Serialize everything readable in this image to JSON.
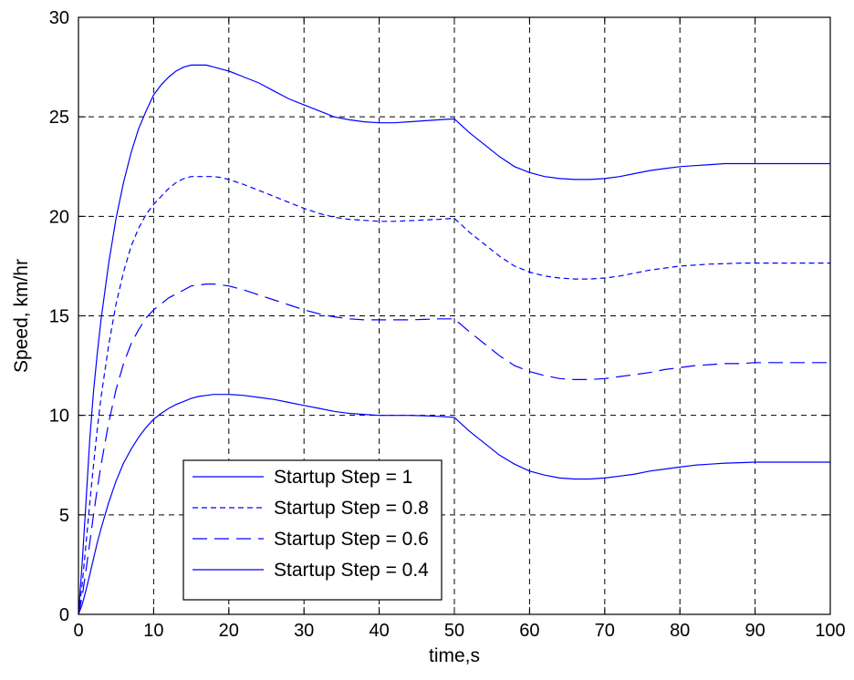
{
  "chart_data": {
    "type": "line",
    "title": "",
    "xlabel": "time,s",
    "ylabel": "Speed, km/hr",
    "xlim": [
      0,
      100
    ],
    "ylim": [
      0,
      30
    ],
    "xticks": [
      0,
      10,
      20,
      30,
      40,
      50,
      60,
      70,
      80,
      90,
      100
    ],
    "yticks": [
      0,
      5,
      10,
      15,
      20,
      25,
      30
    ],
    "grid": true,
    "legend_position": "bottom-left",
    "line_color": "#0000ff",
    "x": [
      0,
      0.5,
      1,
      1.5,
      2,
      2.5,
      3,
      4,
      5,
      6,
      7,
      8,
      9,
      10,
      11,
      12,
      13,
      14,
      15,
      16,
      17,
      18,
      19,
      20,
      22,
      24,
      26,
      28,
      30,
      32,
      34,
      36,
      38,
      40,
      42,
      44,
      46,
      48,
      50,
      52,
      54,
      56,
      58,
      60,
      62,
      64,
      66,
      68,
      70,
      72,
      74,
      76,
      78,
      80,
      82,
      84,
      86,
      88,
      90,
      92,
      94,
      96,
      98,
      100
    ],
    "series": [
      {
        "name": "Startup Step = 1",
        "dash": "solid",
        "values": [
          0,
          2.6,
          5.6,
          8.8,
          11.2,
          13.1,
          14.8,
          17.6,
          19.9,
          21.7,
          23.2,
          24.4,
          25.3,
          26.1,
          26.6,
          27.0,
          27.3,
          27.5,
          27.6,
          27.6,
          27.6,
          27.5,
          27.4,
          27.3,
          27.0,
          26.7,
          26.3,
          25.9,
          25.6,
          25.3,
          25.0,
          24.85,
          24.75,
          24.7,
          24.7,
          24.75,
          24.8,
          24.85,
          24.9,
          24.2,
          23.6,
          23.0,
          22.5,
          22.2,
          22.0,
          21.9,
          21.85,
          21.85,
          21.9,
          22.0,
          22.15,
          22.3,
          22.4,
          22.5,
          22.55,
          22.6,
          22.65,
          22.65,
          22.65,
          22.65,
          22.65,
          22.65,
          22.65,
          22.65
        ]
      },
      {
        "name": "Startup Step = 0.8",
        "dash": "short-dash",
        "values": [
          0,
          1.5,
          3.5,
          5.6,
          7.5,
          9.3,
          10.9,
          13.5,
          15.6,
          17.2,
          18.5,
          19.4,
          20.1,
          20.6,
          21.0,
          21.4,
          21.7,
          21.9,
          22.0,
          22.0,
          22.0,
          22.0,
          21.95,
          21.85,
          21.6,
          21.3,
          21.0,
          20.7,
          20.4,
          20.15,
          19.95,
          19.85,
          19.8,
          19.75,
          19.75,
          19.78,
          19.82,
          19.85,
          19.9,
          19.2,
          18.6,
          18.0,
          17.5,
          17.2,
          17.0,
          16.9,
          16.85,
          16.85,
          16.9,
          17.0,
          17.15,
          17.3,
          17.4,
          17.5,
          17.55,
          17.6,
          17.62,
          17.65,
          17.65,
          17.65,
          17.65,
          17.65,
          17.65,
          17.65
        ]
      },
      {
        "name": "Startup Step = 0.6",
        "dash": "long-dash",
        "values": [
          0,
          0.9,
          2.2,
          3.6,
          5.0,
          6.3,
          7.5,
          9.6,
          11.3,
          12.6,
          13.6,
          14.3,
          14.9,
          15.3,
          15.6,
          15.9,
          16.1,
          16.3,
          16.5,
          16.55,
          16.6,
          16.6,
          16.55,
          16.5,
          16.3,
          16.05,
          15.8,
          15.55,
          15.3,
          15.1,
          14.95,
          14.85,
          14.8,
          14.8,
          14.8,
          14.8,
          14.82,
          14.85,
          14.85,
          14.2,
          13.6,
          13.0,
          12.5,
          12.2,
          12.0,
          11.85,
          11.8,
          11.8,
          11.85,
          11.95,
          12.05,
          12.15,
          12.3,
          12.4,
          12.5,
          12.55,
          12.6,
          12.6,
          12.65,
          12.65,
          12.65,
          12.65,
          12.65,
          12.65
        ]
      },
      {
        "name": "Startup Step = 0.4",
        "dash": "solid",
        "values": [
          0,
          0.5,
          1.2,
          2.0,
          2.8,
          3.6,
          4.3,
          5.6,
          6.7,
          7.6,
          8.3,
          8.9,
          9.4,
          9.8,
          10.1,
          10.35,
          10.55,
          10.7,
          10.85,
          10.95,
          11.0,
          11.05,
          11.05,
          11.05,
          11.0,
          10.9,
          10.8,
          10.65,
          10.5,
          10.35,
          10.2,
          10.1,
          10.05,
          10.0,
          10.0,
          10.0,
          9.98,
          9.95,
          9.9,
          9.2,
          8.6,
          8.0,
          7.55,
          7.2,
          7.0,
          6.85,
          6.8,
          6.8,
          6.85,
          6.95,
          7.05,
          7.2,
          7.3,
          7.4,
          7.5,
          7.55,
          7.6,
          7.62,
          7.65,
          7.65,
          7.65,
          7.65,
          7.65,
          7.65
        ]
      }
    ]
  }
}
